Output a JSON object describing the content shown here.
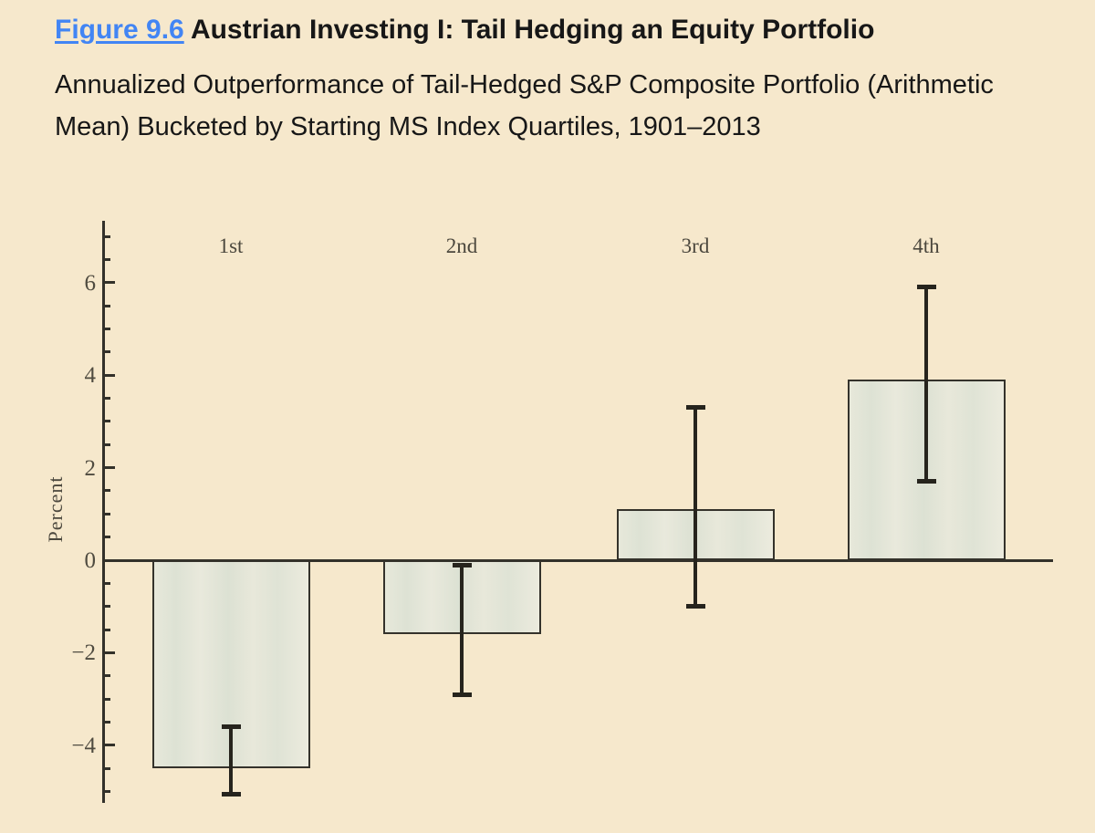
{
  "header": {
    "figure_label": "Figure 9.6",
    "title": " Austrian Investing I: Tail Hedging an Equity Portfolio",
    "subtitle": "Annualized Outperformance of Tail-Hedged S&P Composite Portfolio (Arithmetic Mean) Bucketed by Starting MS Index Quartiles, 1901–2013"
  },
  "chart_data": {
    "type": "bar",
    "categories": [
      "1st",
      "2nd",
      "3rd",
      "4th"
    ],
    "values": [
      -4.5,
      -1.6,
      1.1,
      3.9
    ],
    "error_high": [
      -3.6,
      -0.1,
      3.3,
      5.9
    ],
    "error_low": [
      -5.05,
      -2.9,
      -1.0,
      1.7
    ],
    "title": "",
    "xlabel": "",
    "ylabel": "Percent",
    "ylim": [
      -5.25,
      7.3
    ],
    "yticks": [
      {
        "v": -4,
        "label": "−4"
      },
      {
        "v": -2,
        "label": "−2"
      },
      {
        "v": 0,
        "label": "0"
      },
      {
        "v": 2,
        "label": "2"
      },
      {
        "v": 4,
        "label": "4"
      },
      {
        "v": 6,
        "label": "6"
      }
    ],
    "minor_tick_step": 0.5,
    "grid": false,
    "legend": null,
    "colors": {
      "background": "#f6e8cc",
      "bar_fill": "#e5e7d9",
      "bar_border": "#34322b",
      "axis": "#33312a",
      "error_bar": "#26241d",
      "tick_text": "#4f4b40",
      "link_blue": "#4285f4",
      "caption_text": "#171717"
    }
  }
}
